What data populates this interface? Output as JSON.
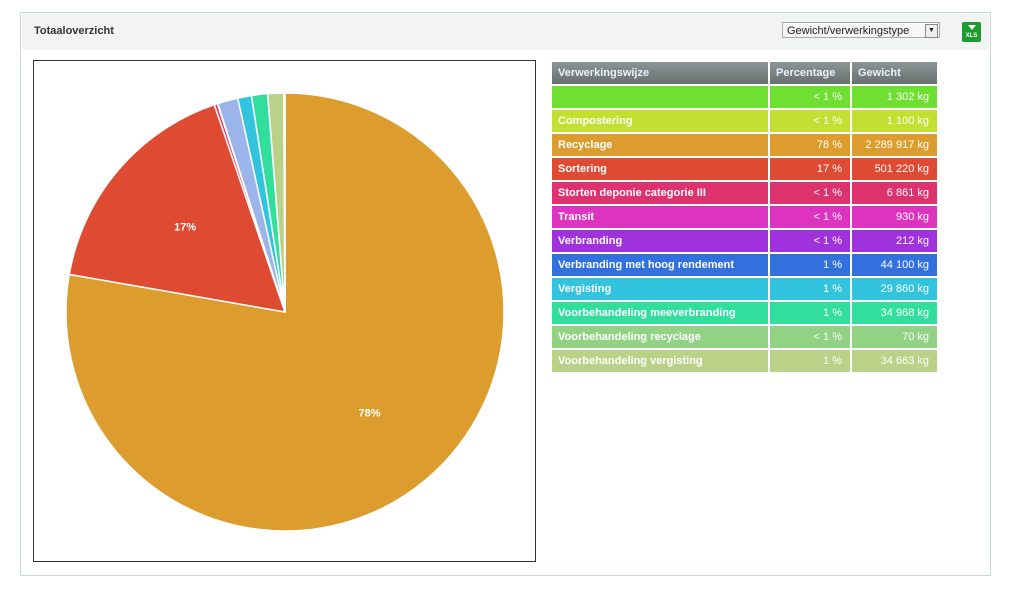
{
  "panel": {
    "title": "Totaaloverzicht",
    "select_value": "Gewicht/verwerkingstype",
    "export_label": "XLS"
  },
  "table": {
    "headers": [
      "Verwerkingswijze",
      "Percentage",
      "Gewicht"
    ],
    "rows": [
      {
        "name": "",
        "pct": "< 1 %",
        "weight": "1 302 kg",
        "color": "#6fdf32",
        "value": 1302
      },
      {
        "name": "Compostering",
        "pct": "< 1 %",
        "weight": "1 100 kg",
        "color": "#c3e032",
        "value": 1100
      },
      {
        "name": "Recyclage",
        "pct": "78 %",
        "weight": "2 289 917 kg",
        "color": "#dd9c2e",
        "value": 2289917
      },
      {
        "name": "Sortering",
        "pct": "17 %",
        "weight": "501 220 kg",
        "color": "#de4a32",
        "value": 501220
      },
      {
        "name": "Storten deponie categorie III",
        "pct": "< 1 %",
        "weight": "6 861 kg",
        "color": "#de326e",
        "value": 6861
      },
      {
        "name": "Transit",
        "pct": "< 1 %",
        "weight": "930 kg",
        "color": "#de32c0",
        "value": 930
      },
      {
        "name": "Verbranding",
        "pct": "< 1 %",
        "weight": "212 kg",
        "color": "#a032de",
        "value": 212
      },
      {
        "name": "Verbranding met hoog rendement",
        "pct": "1 %",
        "weight": "44 100 kg",
        "color": "#3270de",
        "pie_color": "#9bb4ea",
        "value": 44100
      },
      {
        "name": "Vergisting",
        "pct": "1 %",
        "weight": "29 860 kg",
        "color": "#32c3de",
        "value": 29860
      },
      {
        "name": "Voorbehandeling meeverbranding",
        "pct": "1 %",
        "weight": "34 968 kg",
        "color": "#32de9e",
        "value": 34968
      },
      {
        "name": "Voorbehandeling recyclage",
        "pct": "< 1 %",
        "weight": "70 kg",
        "color": "#92d284",
        "value": 70
      },
      {
        "name": "Voorbehandeling vergisting",
        "pct": "1 %",
        "weight": "34 663 kg",
        "color": "#bad288",
        "value": 34663
      }
    ]
  },
  "chart_data": {
    "type": "pie",
    "labels": [
      "",
      "Compostering",
      "Recyclage",
      "Sortering",
      "Storten deponie categorie III",
      "Transit",
      "Verbranding",
      "Verbranding met hoog rendement",
      "Vergisting",
      "Voorbehandeling meeverbranding",
      "Voorbehandeling recyclage",
      "Voorbehandeling vergisting"
    ],
    "values": [
      1302,
      1100,
      2289917,
      501220,
      6861,
      930,
      212,
      44100,
      29860,
      34968,
      70,
      34663
    ],
    "data_labels": {
      "Recyclage": "78%",
      "Sortering": "17%"
    }
  }
}
